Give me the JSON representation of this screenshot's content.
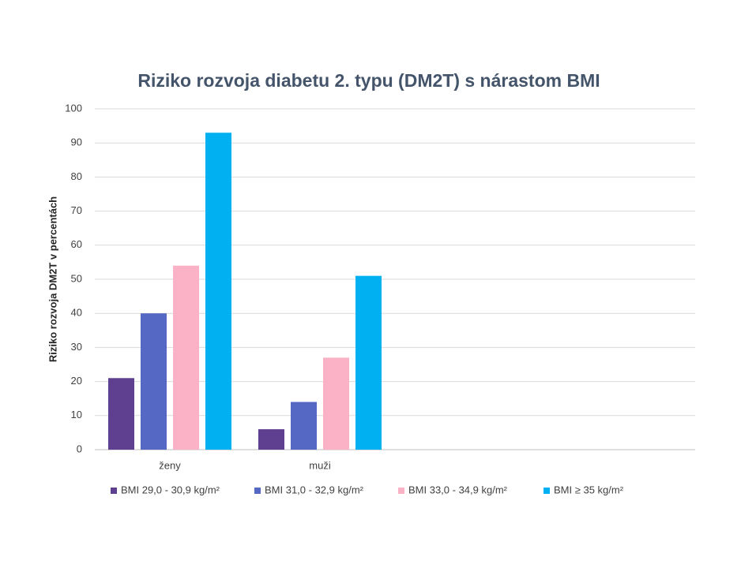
{
  "chart_data": {
    "type": "bar",
    "title": "Riziko rozvoja diabetu 2. typu (DM2T) s nárastom BMI",
    "y_label": "Riziko rozvoja DM2T v percentách",
    "categories": [
      "ženy",
      "muži",
      null,
      null
    ],
    "series": [
      {
        "name": "BMI 29,0 - 30,9 kg/m²",
        "color": "#5f3f8f",
        "values": [
          21,
          6,
          null,
          null
        ]
      },
      {
        "name": "BMI 31,0 - 32,9 kg/m²",
        "color": "#5468c4",
        "values": [
          40,
          14,
          null,
          null
        ]
      },
      {
        "name": "BMI 33,0 - 34,9 kg/m²",
        "color": "#fbb2c6",
        "values": [
          54,
          27,
          null,
          null
        ]
      },
      {
        "name": "BMI ≥ 35 kg/m²",
        "color": "#00b0f0",
        "values": [
          93,
          51,
          null,
          null
        ]
      }
    ],
    "ylim": [
      0,
      100
    ],
    "yticks": [
      0,
      10,
      20,
      30,
      40,
      50,
      60,
      70,
      80,
      90,
      100
    ],
    "grid": true,
    "legend": "bottom"
  }
}
